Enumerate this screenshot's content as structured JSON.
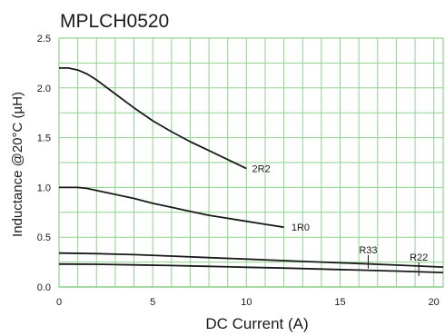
{
  "chart_data": {
    "type": "line",
    "title": "MPLCH0520",
    "xlabel": "DC Current (A)",
    "ylabel": "Inductance @20°C (µH)",
    "xlim": [
      0,
      20.5
    ],
    "ylim": [
      0,
      2.5
    ],
    "x_ticks": [
      "0",
      "5",
      "10",
      "15",
      "20"
    ],
    "y_ticks": [
      "0.0",
      "0.5",
      "1.0",
      "1.5",
      "2.0",
      "2.5"
    ],
    "grid": true,
    "colors": {
      "grid": "#8fd18f",
      "line": "#1a1a1a",
      "frame": "#8fd18f",
      "text": "#1a1a1a"
    },
    "series": [
      {
        "name": "2R2",
        "x": [
          0,
          0.5,
          1,
          1.5,
          2,
          3,
          4,
          5,
          6,
          7,
          8,
          9,
          10
        ],
        "y": [
          2.2,
          2.2,
          2.18,
          2.14,
          2.08,
          1.94,
          1.8,
          1.67,
          1.56,
          1.46,
          1.37,
          1.28,
          1.19
        ]
      },
      {
        "name": "1R0",
        "x": [
          0,
          0.5,
          1,
          1.5,
          2,
          3,
          4,
          5,
          6,
          7,
          8,
          9,
          10,
          11,
          12
        ],
        "y": [
          1.0,
          1.0,
          1.0,
          0.99,
          0.97,
          0.93,
          0.89,
          0.84,
          0.8,
          0.76,
          0.72,
          0.69,
          0.66,
          0.63,
          0.6
        ]
      },
      {
        "name": "R33",
        "x": [
          0,
          2,
          4,
          6,
          8,
          10,
          12,
          14,
          16,
          18,
          20.5
        ],
        "y": [
          0.34,
          0.335,
          0.325,
          0.31,
          0.295,
          0.28,
          0.265,
          0.25,
          0.235,
          0.22,
          0.2
        ]
      },
      {
        "name": "R22",
        "x": [
          0,
          2,
          4,
          6,
          8,
          10,
          12,
          14,
          16,
          18,
          20.5
        ],
        "y": [
          0.23,
          0.228,
          0.222,
          0.215,
          0.207,
          0.198,
          0.19,
          0.18,
          0.17,
          0.16,
          0.145
        ]
      }
    ],
    "annotations": [
      {
        "text": "2R2",
        "x": 10.3,
        "y": 1.19
      },
      {
        "text": "1R0",
        "x": 12.4,
        "y": 0.6
      },
      {
        "text": "R33",
        "x": 16.5,
        "y": 0.23,
        "marker": true
      },
      {
        "text": "R22",
        "x": 19.2,
        "y": 0.155,
        "marker": true
      }
    ]
  }
}
